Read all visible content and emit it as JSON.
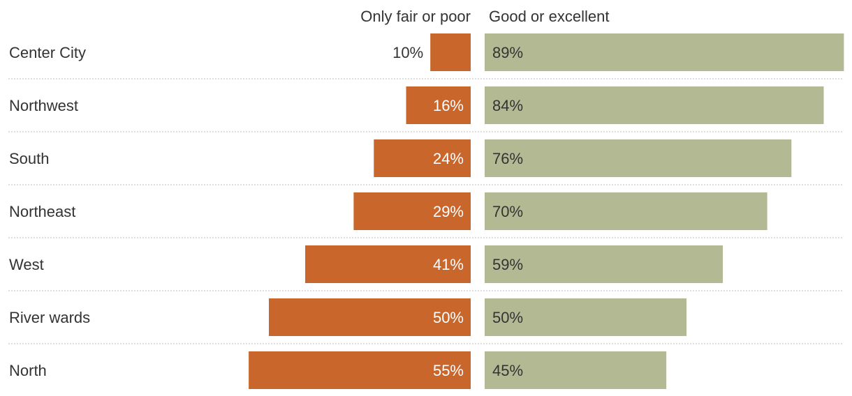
{
  "chart_data": {
    "type": "bar",
    "title": "",
    "xlabel": "",
    "ylabel": "",
    "categories": [
      "Center City",
      "Northwest",
      "South",
      "Northeast",
      "West",
      "River wards",
      "North"
    ],
    "series": [
      {
        "name": "Only fair or poor",
        "values": [
          10,
          16,
          24,
          29,
          41,
          50,
          55
        ],
        "labels": [
          "10%",
          "16%",
          "24%",
          "29%",
          "41%",
          "50%",
          "55%"
        ],
        "color": "#c8662b",
        "direction": "left"
      },
      {
        "name": "Good or excellent",
        "values": [
          89,
          84,
          76,
          70,
          59,
          50,
          45
        ],
        "labels": [
          "89%",
          "84%",
          "76%",
          "70%",
          "59%",
          "50%",
          "45%"
        ],
        "color": "#b3ba93",
        "direction": "right"
      }
    ],
    "xlim": [
      0,
      100
    ],
    "grid": false,
    "separators": "dotted"
  }
}
